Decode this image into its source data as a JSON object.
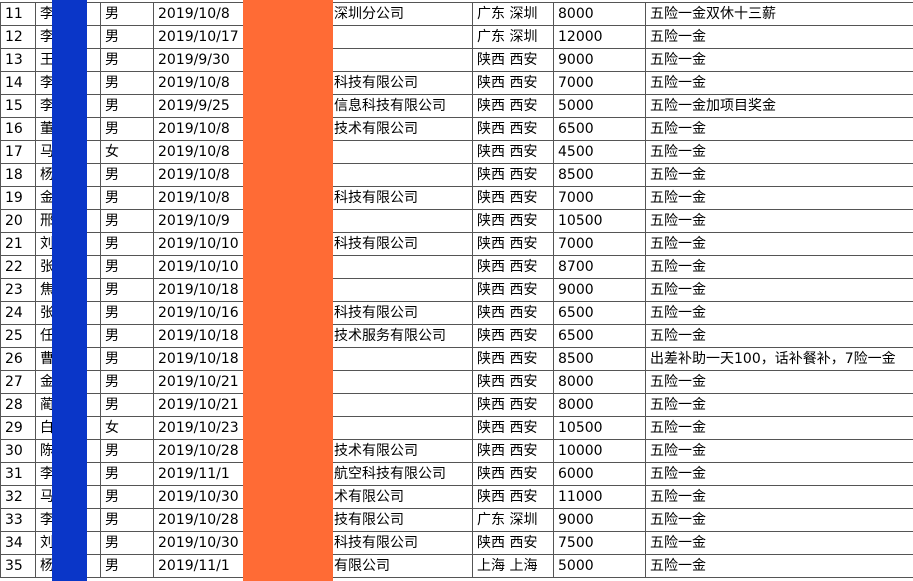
{
  "table": {
    "rows": [
      [
        "11",
        "李",
        "男",
        "2019/10/8",
        "深圳分公司",
        "广东 深圳",
        "8000",
        "五险一金双休十三薪"
      ],
      [
        "12",
        "李",
        "男",
        "2019/10/17",
        null,
        "广东 深圳",
        "12000",
        "五险一金"
      ],
      [
        "13",
        "王",
        "男",
        "2019/9/30",
        null,
        "陕西 西安",
        "9000",
        "五险一金"
      ],
      [
        "14",
        "李",
        "男",
        "2019/10/8",
        "科技有限公司",
        "陕西 西安",
        "7000",
        "五险一金"
      ],
      [
        "15",
        "李",
        "男",
        "2019/9/25",
        "信息科技有限公司",
        "陕西 西安",
        "5000",
        "五险一金加项目奖金"
      ],
      [
        "16",
        "董",
        "男",
        "2019/10/8",
        "技术有限公司",
        "陕西 西安",
        "6500",
        "五险一金"
      ],
      [
        "17",
        "马",
        "女",
        "2019/10/8",
        null,
        "陕西 西安",
        "4500",
        "五险一金"
      ],
      [
        "18",
        "杨",
        "男",
        "2019/10/8",
        null,
        "陕西 西安",
        "8500",
        "五险一金"
      ],
      [
        "19",
        "金",
        "男",
        "2019/10/8",
        "科技有限公司",
        "陕西 西安",
        "7000",
        "五险一金"
      ],
      [
        "20",
        "邢",
        "男",
        "2019/10/9",
        null,
        "陕西 西安",
        "10500",
        "五险一金"
      ],
      [
        "21",
        "刘",
        "男",
        "2019/10/10",
        "科技有限公司",
        "陕西 西安",
        "7000",
        "五险一金"
      ],
      [
        "22",
        "张",
        "男",
        "2019/10/10",
        null,
        "陕西 西安",
        "8700",
        "五险一金"
      ],
      [
        "23",
        "焦",
        "男",
        "2019/10/18",
        null,
        "陕西 西安",
        "9000",
        "五险一金"
      ],
      [
        "24",
        "张",
        "男",
        "2019/10/16",
        "科技有限公司",
        "陕西 西安",
        "6500",
        "五险一金"
      ],
      [
        "25",
        "任",
        "男",
        "2019/10/18",
        "技术服务有限公司",
        "陕西 西安",
        "6500",
        "五险一金"
      ],
      [
        "26",
        "曹",
        "男",
        "2019/10/18",
        null,
        "陕西 西安",
        "8500",
        "出差补助一天100，话补餐补，7险一金"
      ],
      [
        "27",
        "金",
        "男",
        "2019/10/21",
        null,
        "陕西 西安",
        "8000",
        "五险一金"
      ],
      [
        "28",
        "蔺",
        "男",
        "2019/10/21",
        null,
        "陕西 西安",
        "8000",
        "五险一金"
      ],
      [
        "29",
        "白",
        "女",
        "2019/10/23",
        null,
        "陕西 西安",
        "10500",
        "五险一金"
      ],
      [
        "30",
        "陈",
        "男",
        "2019/10/28",
        "技术有限公司",
        "陕西 西安",
        "10000",
        "五险一金"
      ],
      [
        "31",
        "李",
        "男",
        "2019/11/1",
        "航空科技有限公司",
        "陕西 西安",
        "6000",
        "五险一金"
      ],
      [
        "32",
        "马",
        "男",
        "2019/10/30",
        "术有限公司",
        "陕西 西安",
        "11000",
        "五险一金"
      ],
      [
        "33",
        "李",
        "男",
        "2019/10/28",
        "技有限公司",
        "广东 深圳",
        "9000",
        "五险一金"
      ],
      [
        "34",
        "刘",
        "男",
        "2019/10/30",
        "科技有限公司",
        "陕西 西安",
        "7500",
        "五险一金"
      ],
      [
        "35",
        "杨",
        "男",
        "2019/11/1",
        "有限公司",
        "上海 上海",
        "5000",
        "五险一金"
      ]
    ]
  }
}
